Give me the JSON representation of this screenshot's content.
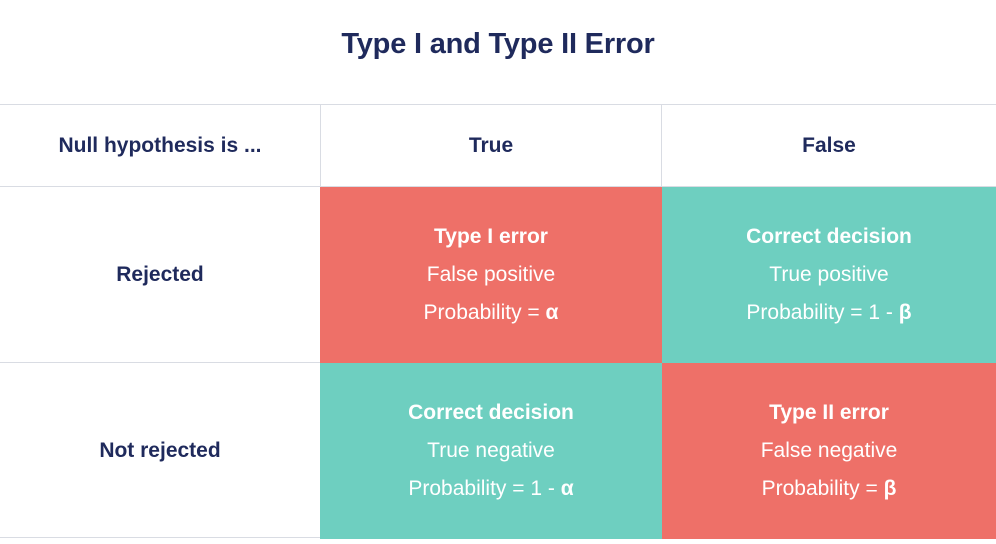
{
  "title": "Type I and Type II Error",
  "header": {
    "row_label": "Null hypothesis is ...",
    "col_true": "True",
    "col_false": "False"
  },
  "rows": [
    {
      "label": "Rejected",
      "cells": [
        {
          "heading": "Type I error",
          "kind": "False positive",
          "prob_prefix": "Probability = ",
          "prob_symbol": "α",
          "color": "#ee7068"
        },
        {
          "heading": "Correct decision",
          "kind": "True positive",
          "prob_prefix": "Probability = 1 - ",
          "prob_symbol": "β",
          "color": "#6ecfc0"
        }
      ]
    },
    {
      "label": "Not rejected",
      "cells": [
        {
          "heading": "Correct decision",
          "kind": "True negative",
          "prob_prefix": "Probability = 1 - ",
          "prob_symbol": "α",
          "color": "#6ecfc0"
        },
        {
          "heading": "Type II error",
          "kind": "False negative",
          "prob_prefix": "Probability = ",
          "prob_symbol": "β",
          "color": "#ee7068"
        }
      ]
    }
  ]
}
